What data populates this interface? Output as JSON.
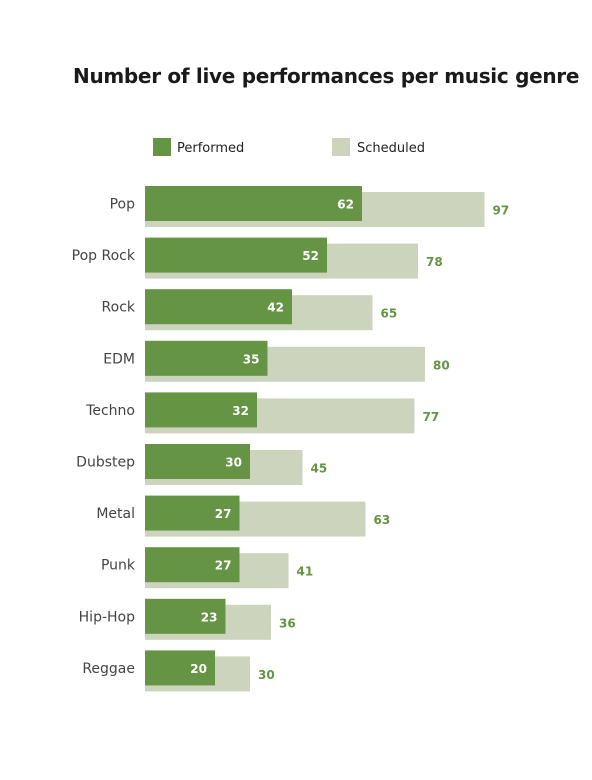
{
  "colors": {
    "performed": "#649444",
    "scheduled": "#ccd4bd",
    "value_label": "#649444"
  },
  "chart_data": {
    "type": "bar",
    "orientation": "horizontal",
    "title": "Number of live performances per music genre",
    "categories": [
      "Pop",
      "Pop Rock",
      "Rock",
      "EDM",
      "Techno",
      "Dubstep",
      "Metal",
      "Punk",
      "Hip-Hop",
      "Reggae"
    ],
    "series": [
      {
        "name": "Performed",
        "values": [
          62,
          52,
          42,
          35,
          32,
          30,
          27,
          27,
          23,
          20
        ]
      },
      {
        "name": "Scheduled",
        "values": [
          97,
          78,
          65,
          80,
          77,
          45,
          63,
          41,
          36,
          30
        ]
      }
    ],
    "xlim": [
      0,
      100
    ],
    "grid": false,
    "legend": "top"
  }
}
